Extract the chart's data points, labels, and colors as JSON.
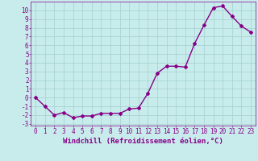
{
  "x": [
    0,
    1,
    2,
    3,
    4,
    5,
    6,
    7,
    8,
    9,
    10,
    11,
    12,
    13,
    14,
    15,
    16,
    17,
    18,
    19,
    20,
    21,
    22,
    23
  ],
  "y": [
    0.0,
    -1.0,
    -2.0,
    -1.7,
    -2.3,
    -2.1,
    -2.1,
    -1.8,
    -1.8,
    -1.8,
    -1.3,
    -1.2,
    0.5,
    2.8,
    3.6,
    3.6,
    3.5,
    6.2,
    8.3,
    10.3,
    10.5,
    9.3,
    8.2,
    7.5
  ],
  "line_color": "#880088",
  "marker": "D",
  "marker_size": 2,
  "bg_color": "#c8ecec",
  "grid_color": "#aad4d4",
  "xlabel": "Windchill (Refroidissement éolien,°C)",
  "xlim": [
    -0.5,
    23.5
  ],
  "ylim": [
    -3.2,
    11.0
  ],
  "yticks": [
    -3,
    -2,
    -1,
    0,
    1,
    2,
    3,
    4,
    5,
    6,
    7,
    8,
    9,
    10
  ],
  "xticks": [
    0,
    1,
    2,
    3,
    4,
    5,
    6,
    7,
    8,
    9,
    10,
    11,
    12,
    13,
    14,
    15,
    16,
    17,
    18,
    19,
    20,
    21,
    22,
    23
  ],
  "tick_color": "#880088",
  "tick_fontsize": 5.5,
  "xlabel_fontsize": 6.5,
  "line_width": 1.0
}
